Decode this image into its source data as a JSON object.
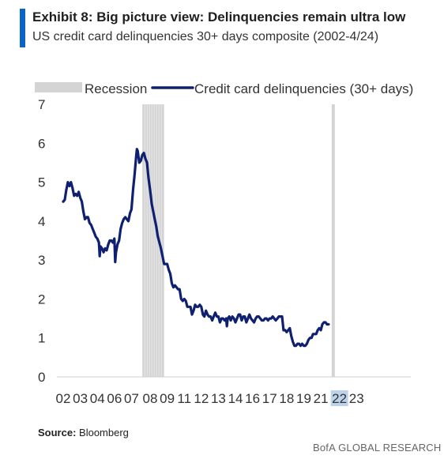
{
  "header": {
    "title_prefix": "Exhibit 8:",
    "title": "Big picture view: Delinquencies remain ultra low",
    "subtitle": "US credit card delinquencies 30+ days composite (2002-4/24)"
  },
  "footer": {
    "source_label": "Source:",
    "source_text": "Bloomberg",
    "brand": "BofA GLOBAL RESEARCH"
  },
  "colors": {
    "accent": "#0a64c8",
    "line": "#0f2070",
    "recession": "#d4d4d4",
    "highlight": "#bcd3ea"
  },
  "chart_data": {
    "type": "line",
    "ylim": [
      0,
      7
    ],
    "yticks": [
      0,
      1,
      2,
      3,
      4,
      5,
      6,
      7
    ],
    "xlim": [
      2002.0,
      2024.4
    ],
    "xticks": [
      {
        "label": "02",
        "x": 2002.0
      },
      {
        "label": "03",
        "x": 2003.1
      },
      {
        "label": "04",
        "x": 2004.2
      },
      {
        "label": "06",
        "x": 2005.3
      },
      {
        "label": "07",
        "x": 2006.4
      },
      {
        "label": "08",
        "x": 2007.6
      },
      {
        "label": "09",
        "x": 2008.7
      },
      {
        "label": "11",
        "x": 2009.8
      },
      {
        "label": "12",
        "x": 2010.9
      },
      {
        "label": "13",
        "x": 2012.0
      },
      {
        "label": "14",
        "x": 2013.1
      },
      {
        "label": "16",
        "x": 2014.2
      },
      {
        "label": "17",
        "x": 2015.3
      },
      {
        "label": "18",
        "x": 2016.4
      },
      {
        "label": "19",
        "x": 2017.5
      },
      {
        "label": "21",
        "x": 2018.6
      },
      {
        "label": "22",
        "x": 2019.8,
        "highlight": true
      },
      {
        "label": "23",
        "x": 2020.9
      }
    ],
    "recessions": [
      {
        "start": 2007.1,
        "end": 2008.5
      },
      {
        "start": 2019.3,
        "end": 2019.45
      }
    ],
    "legend": {
      "position": "top",
      "recession_label": "Recession",
      "line_label": "Credit card delinquencies (30+ days)"
    },
    "series": [
      {
        "name": "Credit card delinquencies (30+ days)",
        "points": [
          [
            2002.0,
            4.5
          ],
          [
            2002.1,
            4.55
          ],
          [
            2002.2,
            4.8
          ],
          [
            2002.3,
            5.0
          ],
          [
            2002.4,
            4.9
          ],
          [
            2002.5,
            5.0
          ],
          [
            2002.6,
            4.85
          ],
          [
            2002.7,
            4.65
          ],
          [
            2002.8,
            4.7
          ],
          [
            2002.9,
            4.65
          ],
          [
            2003.0,
            4.75
          ],
          [
            2003.1,
            4.6
          ],
          [
            2003.2,
            4.5
          ],
          [
            2003.3,
            4.25
          ],
          [
            2003.4,
            4.05
          ],
          [
            2003.5,
            4.1
          ],
          [
            2003.6,
            4.1
          ],
          [
            2003.7,
            3.95
          ],
          [
            2003.8,
            3.9
          ],
          [
            2003.9,
            3.8
          ],
          [
            2004.0,
            3.7
          ],
          [
            2004.1,
            3.6
          ],
          [
            2004.2,
            3.55
          ],
          [
            2004.3,
            3.45
          ],
          [
            2004.35,
            3.1
          ],
          [
            2004.4,
            3.35
          ],
          [
            2004.5,
            3.3
          ],
          [
            2004.6,
            3.2
          ],
          [
            2004.7,
            3.3
          ],
          [
            2004.8,
            3.25
          ],
          [
            2004.9,
            3.4
          ],
          [
            2005.0,
            3.5
          ],
          [
            2005.1,
            3.5
          ],
          [
            2005.2,
            3.45
          ],
          [
            2005.3,
            3.55
          ],
          [
            2005.35,
            2.95
          ],
          [
            2005.4,
            3.2
          ],
          [
            2005.5,
            3.4
          ],
          [
            2005.6,
            3.5
          ],
          [
            2005.7,
            3.8
          ],
          [
            2005.8,
            3.95
          ],
          [
            2005.9,
            4.05
          ],
          [
            2006.0,
            4.1
          ],
          [
            2006.1,
            4.05
          ],
          [
            2006.2,
            4.0
          ],
          [
            2006.3,
            4.2
          ],
          [
            2006.4,
            4.3
          ],
          [
            2006.5,
            4.8
          ],
          [
            2006.6,
            5.2
          ],
          [
            2006.7,
            5.65
          ],
          [
            2006.75,
            5.85
          ],
          [
            2006.8,
            5.8
          ],
          [
            2006.9,
            5.5
          ],
          [
            2007.0,
            5.55
          ],
          [
            2007.1,
            5.7
          ],
          [
            2007.2,
            5.75
          ],
          [
            2007.3,
            5.6
          ],
          [
            2007.4,
            5.5
          ],
          [
            2007.5,
            5.1
          ],
          [
            2007.6,
            4.8
          ],
          [
            2007.7,
            4.45
          ],
          [
            2007.8,
            4.25
          ],
          [
            2007.9,
            4.05
          ],
          [
            2008.0,
            3.85
          ],
          [
            2008.1,
            3.6
          ],
          [
            2008.2,
            3.45
          ],
          [
            2008.3,
            3.3
          ],
          [
            2008.4,
            3.1
          ],
          [
            2008.5,
            2.9
          ],
          [
            2008.7,
            2.9
          ],
          [
            2008.8,
            2.75
          ],
          [
            2008.9,
            2.65
          ],
          [
            2009.0,
            2.4
          ],
          [
            2009.1,
            2.3
          ],
          [
            2009.2,
            2.35
          ],
          [
            2009.3,
            2.3
          ],
          [
            2009.4,
            2.25
          ],
          [
            2009.5,
            2.25
          ],
          [
            2009.6,
            2.0
          ],
          [
            2009.7,
            1.95
          ],
          [
            2009.8,
            2.0
          ],
          [
            2009.9,
            1.95
          ],
          [
            2010.0,
            1.8
          ],
          [
            2010.1,
            1.8
          ],
          [
            2010.2,
            1.8
          ],
          [
            2010.3,
            1.6
          ],
          [
            2010.4,
            1.7
          ],
          [
            2010.5,
            1.85
          ],
          [
            2010.6,
            1.8
          ],
          [
            2010.7,
            1.8
          ],
          [
            2010.8,
            1.85
          ],
          [
            2010.9,
            1.8
          ],
          [
            2011.0,
            1.6
          ],
          [
            2011.1,
            1.55
          ],
          [
            2011.2,
            1.7
          ],
          [
            2011.3,
            1.6
          ],
          [
            2011.4,
            1.55
          ],
          [
            2011.5,
            1.55
          ],
          [
            2011.6,
            1.45
          ],
          [
            2011.7,
            1.55
          ],
          [
            2011.8,
            1.65
          ],
          [
            2011.9,
            1.55
          ],
          [
            2012.0,
            1.55
          ],
          [
            2012.1,
            1.4
          ],
          [
            2012.2,
            1.5
          ],
          [
            2012.3,
            1.5
          ],
          [
            2012.4,
            1.45
          ],
          [
            2012.5,
            1.5
          ],
          [
            2012.55,
            1.3
          ],
          [
            2012.6,
            1.5
          ],
          [
            2012.7,
            1.55
          ],
          [
            2012.8,
            1.45
          ],
          [
            2012.9,
            1.55
          ],
          [
            2013.0,
            1.5
          ],
          [
            2013.1,
            1.4
          ],
          [
            2013.2,
            1.5
          ],
          [
            2013.3,
            1.6
          ],
          [
            2013.4,
            1.6
          ],
          [
            2013.5,
            1.45
          ],
          [
            2013.6,
            1.55
          ],
          [
            2013.7,
            1.55
          ],
          [
            2013.8,
            1.4
          ],
          [
            2013.9,
            1.5
          ],
          [
            2014.0,
            1.6
          ],
          [
            2014.1,
            1.5
          ],
          [
            2014.2,
            1.45
          ],
          [
            2014.3,
            1.4
          ],
          [
            2014.4,
            1.5
          ],
          [
            2014.5,
            1.55
          ],
          [
            2014.6,
            1.55
          ],
          [
            2014.7,
            1.5
          ],
          [
            2014.8,
            1.45
          ],
          [
            2014.9,
            1.45
          ],
          [
            2015.0,
            1.5
          ],
          [
            2015.1,
            1.5
          ],
          [
            2015.2,
            1.45
          ],
          [
            2015.3,
            1.5
          ],
          [
            2015.4,
            1.5
          ],
          [
            2015.5,
            1.55
          ],
          [
            2015.6,
            1.5
          ],
          [
            2015.7,
            1.45
          ],
          [
            2015.8,
            1.5
          ],
          [
            2015.9,
            1.55
          ],
          [
            2016.0,
            1.55
          ],
          [
            2016.1,
            1.55
          ],
          [
            2016.2,
            1.2
          ],
          [
            2016.3,
            1.2
          ],
          [
            2016.4,
            1.15
          ],
          [
            2016.5,
            1.2
          ],
          [
            2016.6,
            1.25
          ],
          [
            2016.7,
            1.05
          ],
          [
            2016.8,
            0.9
          ],
          [
            2016.9,
            0.8
          ],
          [
            2017.0,
            0.8
          ],
          [
            2017.1,
            0.85
          ],
          [
            2017.2,
            0.85
          ],
          [
            2017.3,
            0.8
          ],
          [
            2017.4,
            0.85
          ],
          [
            2017.5,
            0.8
          ],
          [
            2017.6,
            0.8
          ],
          [
            2017.7,
            0.85
          ],
          [
            2017.8,
            0.95
          ],
          [
            2017.9,
            1.0
          ],
          [
            2018.0,
            1.0
          ],
          [
            2018.1,
            1.1
          ],
          [
            2018.2,
            1.1
          ],
          [
            2018.3,
            1.1
          ],
          [
            2018.4,
            1.2
          ],
          [
            2018.5,
            1.25
          ],
          [
            2018.6,
            1.2
          ],
          [
            2018.7,
            1.35
          ],
          [
            2018.8,
            1.4
          ],
          [
            2018.9,
            1.4
          ],
          [
            2019.0,
            1.35
          ],
          [
            2019.1,
            1.35
          ]
        ]
      }
    ]
  }
}
